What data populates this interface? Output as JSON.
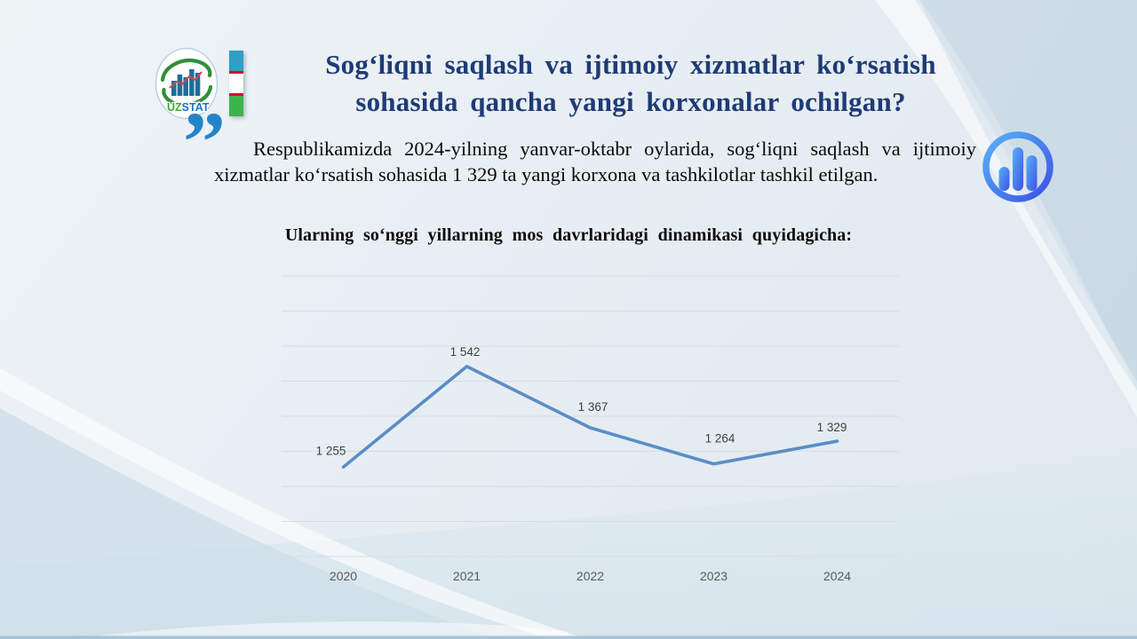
{
  "slide": {
    "title_lines": [
      "Sog‘liqni saqlash va ijtimoiy xizmatlar ko‘rsatish",
      "sohasida qancha yangi korxonalar ochilgan?"
    ],
    "quote_mark": "”",
    "paragraph": "Respublikamizda 2024-yilning yanvar-oktabr oylarida, sog‘liqni saqlash va ijtimoiy xizmatlar ko‘rsatish sohasida 1 329 ta yangi korxona va tashkilotlar tashkil etilgan.",
    "chart_heading": "Ularning so‘nggi yillarning mos davrlaridagi dinamikasi quyidagicha:"
  },
  "logo": {
    "uz": "UZ",
    "stat": "STAT",
    "colors": {
      "swirl_green": "#2f8f3b",
      "bars_teal": "#1d6e96",
      "zigzag_red": "#d8414f",
      "uz_green": "#3aaa35",
      "stat_blue": "#1b75bc",
      "circle_stroke": "#aecbdd"
    }
  },
  "flag": {
    "blue": "#2f9fc6",
    "white": "#ffffff",
    "green": "#3bb54a",
    "red": "#ce1126"
  },
  "chart_icon": {
    "gradient_start": "#58b2f6",
    "gradient_end": "#3d50e6"
  },
  "colors": {
    "title": "#1f3b76",
    "quote": "#2484c8",
    "body": "#0a0a0a",
    "grid": "#d6dde2",
    "line": "#5b8dc7",
    "data_label": "#3f3f3f",
    "tick_label": "#595959"
  },
  "chart_data": {
    "type": "line",
    "categories": [
      "2020",
      "2021",
      "2022",
      "2023",
      "2024"
    ],
    "values": [
      1255,
      1542,
      1367,
      1264,
      1329
    ],
    "value_labels": [
      "1 255",
      "1 542",
      "1 367",
      "1 264",
      "1 329"
    ],
    "title": "",
    "xlabel": "",
    "ylabel": "",
    "ylim": [
      1000,
      1800
    ],
    "grid_step": 100,
    "grid": "on",
    "legend": "none",
    "line_color": "#5b8dc7",
    "marker": "none"
  }
}
